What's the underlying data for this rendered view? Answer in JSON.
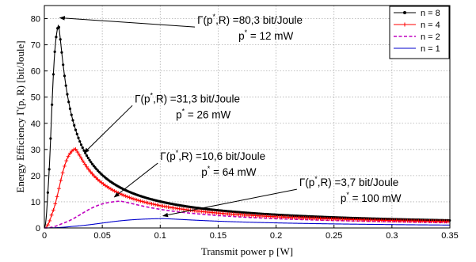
{
  "chart_data": {
    "type": "line",
    "xlabel": "Transmit power p [W]",
    "ylabel": "Energy Efficiency Γ(p, R) [bit/Joule]",
    "xlim": [
      0,
      0.35
    ],
    "ylim": [
      0,
      85
    ],
    "xticks": [
      0,
      0.05,
      0.1,
      0.15,
      0.2,
      0.25,
      0.3,
      0.35
    ],
    "xtick_labels": [
      "0",
      "0.05",
      "0.1",
      "0.15",
      "0.2",
      "0.25",
      "0.3",
      "0.35"
    ],
    "yticks": [
      0,
      10,
      20,
      30,
      40,
      50,
      60,
      70,
      80
    ],
    "ytick_labels": [
      "0",
      "10",
      "20",
      "30",
      "40",
      "50",
      "60",
      "70",
      "80"
    ],
    "grid": true,
    "legend_position": "top-right",
    "series": [
      {
        "name": "n = 8",
        "color": "#000000",
        "style": "solid",
        "marker": "dot",
        "peak_x": 0.012,
        "peak_y": 80.3
      },
      {
        "name": "n = 4",
        "color": "#ff0000",
        "style": "solid",
        "marker": "plus",
        "peak_x": 0.026,
        "peak_y": 31.3
      },
      {
        "name": "n = 2",
        "color": "#c000c0",
        "style": "dashed",
        "marker": "none",
        "peak_x": 0.064,
        "peak_y": 10.6
      },
      {
        "name": "n = 1",
        "color": "#0000cc",
        "style": "solid",
        "marker": "none",
        "peak_x": 0.1,
        "peak_y": 3.7
      }
    ],
    "annotations": [
      {
        "line1_pre": "Γ(p",
        "line1_sup": "*",
        "line1_post": ",R) =80,3 bit/Joule",
        "line2_pre": "p",
        "line2_sup": "*",
        "line2_post": " = 12 mW",
        "target_x": 0.012,
        "target_y": 80.3,
        "text_x": 0.132,
        "text_y": 78
      },
      {
        "line1_pre": "Γ(p",
        "line1_sup": "*",
        "line1_post": ",R) =31,3 bit/Joule",
        "line2_pre": "p",
        "line2_sup": "*",
        "line2_post": " = 26 mW",
        "target_x": 0.033,
        "target_y": 28.7,
        "text_x": 0.078,
        "text_y": 48
      },
      {
        "line1_pre": "Γ(p",
        "line1_sup": "*",
        "line1_post": ",R) =10,6 bit/Joule",
        "line2_pre": "p",
        "line2_sup": "*",
        "line2_post": " = 64 mW",
        "target_x": 0.059,
        "target_y": 11.8,
        "text_x": 0.1,
        "text_y": 26
      },
      {
        "line1_pre": "Γ(p",
        "line1_sup": "*",
        "line1_post": ",R) =3,7 bit/Joule",
        "line2_pre": "p",
        "line2_sup": "*",
        "line2_post": " = 100 mW",
        "target_x": 0.101,
        "target_y": 4.6,
        "text_x": 0.22,
        "text_y": 16
      }
    ]
  }
}
